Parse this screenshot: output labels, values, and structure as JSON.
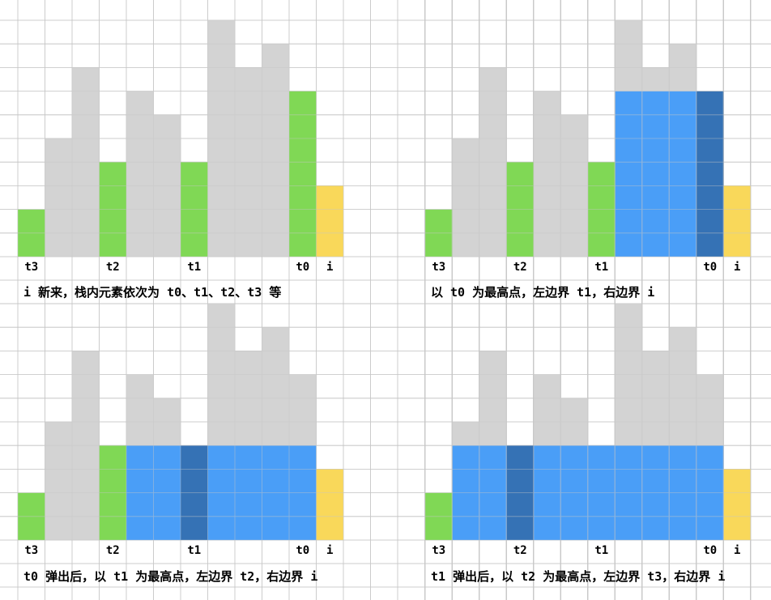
{
  "colors": {
    "gray": "#d3d3d3",
    "green": "#80d855",
    "yellow": "#f9d85a",
    "blue": "#4a9ef7",
    "dark_blue": "#3572b5",
    "grid": "#c6c6c6"
  },
  "heights": [
    2,
    5,
    8,
    4,
    7,
    6,
    4,
    10,
    8,
    9,
    7,
    3
  ],
  "panels": [
    {
      "id": "panel-1",
      "caption": "i 新来，栈内元素依次为 t0、t1、t2、t3 等",
      "labels": [
        {
          "index": 0,
          "text": "t3"
        },
        {
          "index": 3,
          "text": "t2"
        },
        {
          "index": 6,
          "text": "t1"
        },
        {
          "index": 10,
          "text": "t0"
        },
        {
          "index": 11,
          "text": "i"
        }
      ],
      "bars": [
        {
          "index": 0,
          "color": "green"
        },
        {
          "index": 3,
          "color": "green"
        },
        {
          "index": 6,
          "color": "green"
        },
        {
          "index": 10,
          "color": "green"
        },
        {
          "index": 11,
          "color": "yellow"
        }
      ],
      "fill": null
    },
    {
      "id": "panel-2",
      "caption": "以 t0 为最高点，左边界 t1，右边界 i",
      "labels": [
        {
          "index": 0,
          "text": "t3"
        },
        {
          "index": 3,
          "text": "t2"
        },
        {
          "index": 6,
          "text": "t1"
        },
        {
          "index": 10,
          "text": "t0"
        },
        {
          "index": 11,
          "text": "i"
        }
      ],
      "bars": [
        {
          "index": 0,
          "color": "green"
        },
        {
          "index": 3,
          "color": "green"
        },
        {
          "index": 6,
          "color": "green"
        },
        {
          "index": 11,
          "color": "yellow"
        }
      ],
      "fill": {
        "from": 7,
        "to": 10,
        "level": 7,
        "peak": 10
      }
    },
    {
      "id": "panel-3",
      "caption": "t0 弹出后，以 t1 为最高点，左边界 t2，右边界 i",
      "labels": [
        {
          "index": 0,
          "text": "t3"
        },
        {
          "index": 3,
          "text": "t2"
        },
        {
          "index": 6,
          "text": "t1"
        },
        {
          "index": 10,
          "text": "t0"
        },
        {
          "index": 11,
          "text": "i"
        }
      ],
      "bars": [
        {
          "index": 0,
          "color": "green"
        },
        {
          "index": 3,
          "color": "green"
        },
        {
          "index": 11,
          "color": "yellow"
        }
      ],
      "fill": {
        "from": 4,
        "to": 10,
        "level": 4,
        "peak": 6
      }
    },
    {
      "id": "panel-4",
      "caption": "t1 弹出后，以 t2 为最高点，左边界 t3，右边界 i",
      "labels": [
        {
          "index": 0,
          "text": "t3"
        },
        {
          "index": 3,
          "text": "t2"
        },
        {
          "index": 6,
          "text": "t1"
        },
        {
          "index": 10,
          "text": "t0"
        },
        {
          "index": 11,
          "text": "i"
        }
      ],
      "bars": [
        {
          "index": 0,
          "color": "green"
        },
        {
          "index": 11,
          "color": "yellow"
        }
      ],
      "fill": {
        "from": 1,
        "to": 10,
        "level": 4,
        "peak": 3
      }
    }
  ]
}
